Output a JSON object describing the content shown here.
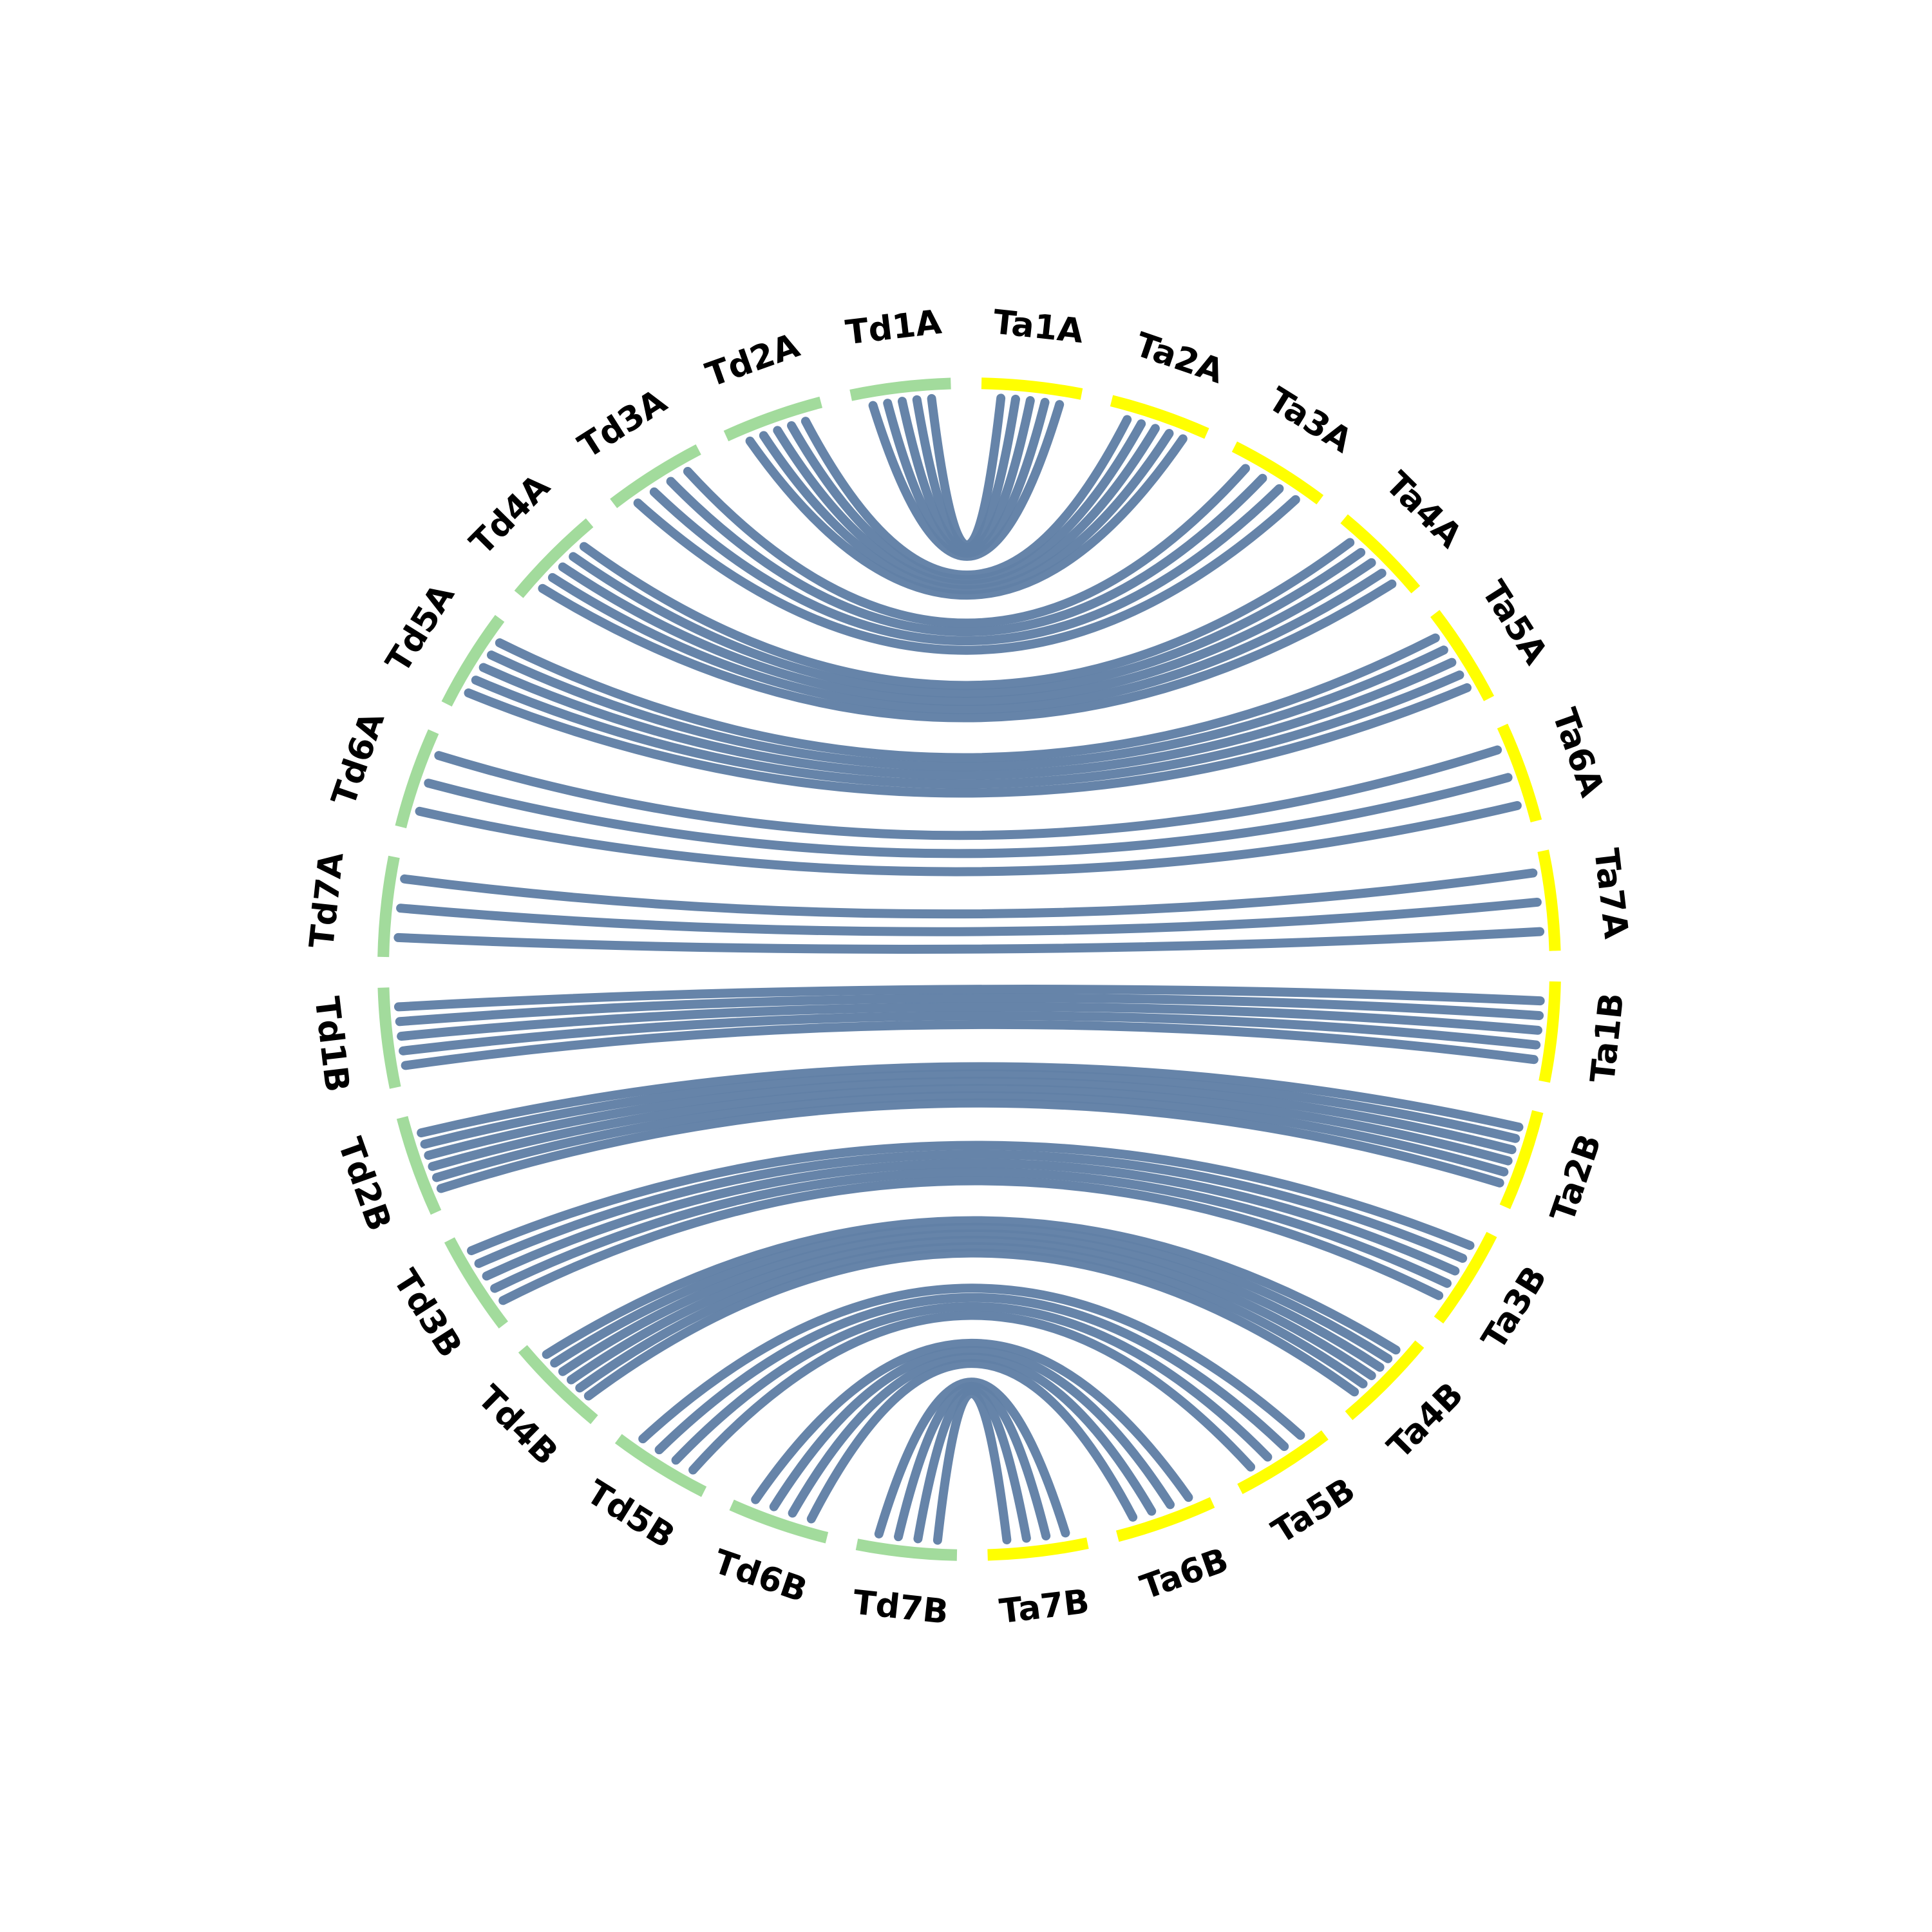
{
  "colors": {
    "background": "#ffffff",
    "link": "#6180a6",
    "td_segments": "#a2db9c",
    "ta_segments": "#ffff00",
    "label": "#000000"
  },
  "segments": [
    {
      "id": "Ta1A",
      "label": "Ta1A",
      "group": "Ta"
    },
    {
      "id": "Ta2A",
      "label": "Ta2A",
      "group": "Ta"
    },
    {
      "id": "Ta3A",
      "label": "Ta3A",
      "group": "Ta"
    },
    {
      "id": "Ta4A",
      "label": "Ta4A",
      "group": "Ta"
    },
    {
      "id": "Ta5A",
      "label": "Ta5A",
      "group": "Ta"
    },
    {
      "id": "Ta6A",
      "label": "Ta6A",
      "group": "Ta"
    },
    {
      "id": "Ta7A",
      "label": "Ta7A",
      "group": "Ta"
    },
    {
      "id": "Ta1B",
      "label": "Ta1B",
      "group": "Ta"
    },
    {
      "id": "Ta2B",
      "label": "Ta2B",
      "group": "Ta"
    },
    {
      "id": "Ta3B",
      "label": "Ta3B",
      "group": "Ta"
    },
    {
      "id": "Ta4B",
      "label": "Ta4B",
      "group": "Ta"
    },
    {
      "id": "Ta5B",
      "label": "Ta5B",
      "group": "Ta"
    },
    {
      "id": "Ta6B",
      "label": "Ta6B",
      "group": "Ta"
    },
    {
      "id": "Ta7B",
      "label": "Ta7B",
      "group": "Ta"
    },
    {
      "id": "Td7B",
      "label": "Td7B",
      "group": "Td"
    },
    {
      "id": "Td6B",
      "label": "Td6B",
      "group": "Td"
    },
    {
      "id": "Td5B",
      "label": "Td5B",
      "group": "Td"
    },
    {
      "id": "Td4B",
      "label": "Td4B",
      "group": "Td"
    },
    {
      "id": "Td3B",
      "label": "Td3B",
      "group": "Td"
    },
    {
      "id": "Td2B",
      "label": "Td2B",
      "group": "Td"
    },
    {
      "id": "Td1B",
      "label": "Td1B",
      "group": "Td"
    },
    {
      "id": "Td7A",
      "label": "Td7A",
      "group": "Td"
    },
    {
      "id": "Td6A",
      "label": "Td6A",
      "group": "Td"
    },
    {
      "id": "Td5A",
      "label": "Td5A",
      "group": "Td"
    },
    {
      "id": "Td4A",
      "label": "Td4A",
      "group": "Td"
    },
    {
      "id": "Td3A",
      "label": "Td3A",
      "group": "Td"
    },
    {
      "id": "Td2A",
      "label": "Td2A",
      "group": "Td"
    },
    {
      "id": "Td1A",
      "label": "Td1A",
      "group": "Td"
    }
  ],
  "links": [
    {
      "from": "Td1A",
      "to": "Ta1A",
      "count": 5
    },
    {
      "from": "Td2A",
      "to": "Ta2A",
      "count": 5
    },
    {
      "from": "Td3A",
      "to": "Ta3A",
      "count": 4
    },
    {
      "from": "Td4A",
      "to": "Ta4A",
      "count": 5
    },
    {
      "from": "Td5A",
      "to": "Ta5A",
      "count": 5
    },
    {
      "from": "Td6A",
      "to": "Ta6A",
      "count": 3
    },
    {
      "from": "Td7A",
      "to": "Ta7A",
      "count": 3
    },
    {
      "from": "Td1B",
      "to": "Ta1B",
      "count": 5
    },
    {
      "from": "Td2B",
      "to": "Ta2B",
      "count": 6
    },
    {
      "from": "Td3B",
      "to": "Ta3B",
      "count": 5
    },
    {
      "from": "Td4B",
      "to": "Ta4B",
      "count": 6
    },
    {
      "from": "Td5B",
      "to": "Ta5B",
      "count": 4
    },
    {
      "from": "Td6B",
      "to": "Ta6B",
      "count": 4
    },
    {
      "from": "Td7B",
      "to": "Ta7B",
      "count": 4
    }
  ]
}
